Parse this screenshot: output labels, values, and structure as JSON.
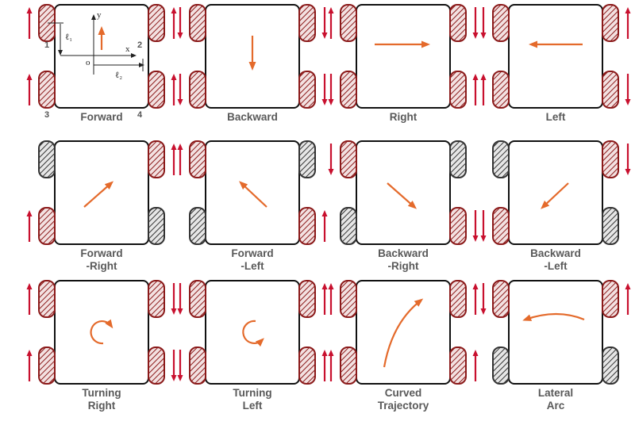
{
  "colors": {
    "wheel_active": "#8b1a1a",
    "wheel_inactive": "#333333",
    "wheel_arrow": "#c8102e",
    "motion_arrow": "#e46a2b",
    "body_stroke": "#111111",
    "caption": "#595959"
  },
  "axes_labels": {
    "y": "y",
    "x": "x",
    "origin": "o",
    "l1": "ℓ₁",
    "l2": "ℓ₂"
  },
  "wheel_numbers": [
    "1",
    "2",
    "3",
    "4"
  ],
  "panels": [
    {
      "caption": [
        "Forward"
      ],
      "wheels": [
        "up",
        "up",
        "up",
        "up"
      ],
      "motion": "up"
    },
    {
      "caption": [
        "Backward"
      ],
      "wheels": [
        "down",
        "down",
        "down",
        "down"
      ],
      "motion": "down"
    },
    {
      "caption": [
        "Right"
      ],
      "wheels": [
        "up",
        "down",
        "down",
        "up"
      ],
      "motion": "right"
    },
    {
      "caption": [
        "Left"
      ],
      "wheels": [
        "down",
        "up",
        "up",
        "down"
      ],
      "motion": "left"
    },
    {
      "caption": [
        "Forward",
        "-Right"
      ],
      "wheels": [
        "stop",
        "up",
        "up",
        "stop"
      ],
      "motion": "up-right"
    },
    {
      "caption": [
        "Forward",
        "-Left"
      ],
      "wheels": [
        "up",
        "stop",
        "stop",
        "up"
      ],
      "motion": "up-left"
    },
    {
      "caption": [
        "Backward",
        "-Right"
      ],
      "wheels": [
        "down",
        "stop",
        "stop",
        "down"
      ],
      "motion": "down-right"
    },
    {
      "caption": [
        "Backward",
        "-Left"
      ],
      "wheels": [
        "stop",
        "down",
        "down",
        "stop"
      ],
      "motion": "down-left"
    },
    {
      "caption": [
        "Turning",
        "Right"
      ],
      "wheels": [
        "up",
        "down",
        "up",
        "down"
      ],
      "motion": "turn-right"
    },
    {
      "caption": [
        "Turning",
        "Left"
      ],
      "wheels": [
        "down",
        "up",
        "down",
        "up"
      ],
      "motion": "turn-left"
    },
    {
      "caption": [
        "Curved",
        "Trajectory"
      ],
      "wheels": [
        "up",
        "up",
        "up",
        "up"
      ],
      "motion": "curve"
    },
    {
      "caption": [
        "Lateral",
        "Arc"
      ],
      "wheels": [
        "down",
        "up",
        "stop",
        "stop"
      ],
      "motion": "arc"
    }
  ]
}
